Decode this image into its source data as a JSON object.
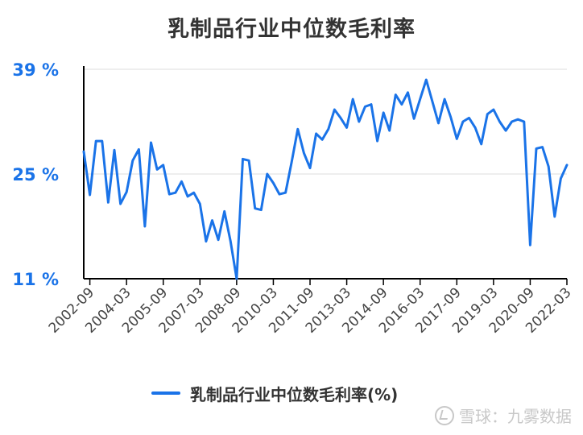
{
  "chart_data": {
    "type": "line",
    "title": "乳制品行业中位数毛利率",
    "ylim": [
      11,
      39
    ],
    "yticks": [
      "39 %",
      "25 %",
      "11 %"
    ],
    "ytick_values": [
      39,
      25,
      11
    ],
    "xtick_labels": [
      "2002-09",
      "2004-03",
      "2005-09",
      "2007-03",
      "2008-09",
      "2010-03",
      "2011-09",
      "2013-03",
      "2014-09",
      "2016-03",
      "2017-09",
      "2019-03",
      "2020-09",
      "2022-03"
    ],
    "grid": true,
    "legend_position": "bottom",
    "series": [
      {
        "name": "乳制品行业中位数毛利率(%)",
        "color": "#1a73e8",
        "values": [
          28.0,
          22.2,
          29.4,
          29.4,
          21.2,
          28.2,
          21.0,
          22.6,
          26.8,
          28.3,
          18.0,
          29.2,
          25.6,
          26.2,
          22.3,
          22.5,
          24.0,
          22.0,
          22.5,
          21.0,
          16.0,
          18.8,
          16.2,
          20.0,
          16.0,
          11.0,
          27.0,
          26.8,
          20.4,
          20.2,
          25.0,
          23.8,
          22.3,
          22.5,
          26.6,
          31.0,
          27.8,
          25.8,
          30.4,
          29.6,
          31.0,
          33.6,
          32.5,
          31.2,
          35.0,
          32.0,
          34.0,
          34.3,
          29.4,
          33.2,
          30.8,
          35.6,
          34.3,
          35.9,
          32.4,
          35.0,
          37.6,
          34.7,
          31.8,
          35.0,
          32.6,
          29.7,
          32.0,
          32.5,
          31.2,
          29.0,
          33.0,
          33.6,
          32.0,
          30.8,
          32.0,
          32.3,
          32.0,
          15.5,
          28.4,
          28.6,
          26.0,
          19.3,
          24.4,
          26.2
        ]
      }
    ]
  },
  "legend": {
    "label": "乳制品行业中位数毛利率(%)",
    "color": "#1a73e8"
  },
  "watermark": {
    "text": "雪球：九雾数据"
  },
  "colors": {
    "axis_label": "#1a73e8",
    "text": "#333333",
    "grid": "#dddddd"
  }
}
